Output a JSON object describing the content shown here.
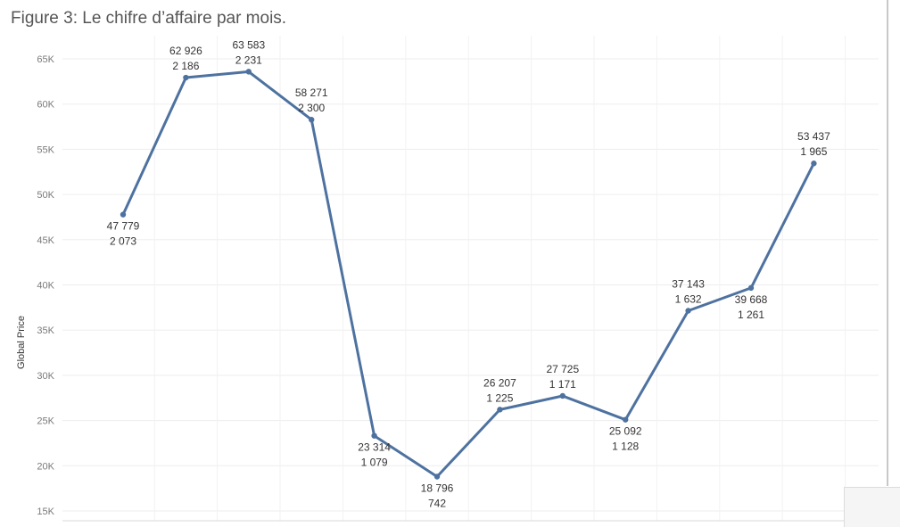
{
  "page": {
    "title": "Figure 3: Le chifre d’affaire par mois."
  },
  "chart_data": {
    "type": "line",
    "title": "Figure 3: Le chifre d’affaire par mois.",
    "ylabel": "Global Price",
    "xlabel": "",
    "ylim": [
      15000,
      66000
    ],
    "yticks": [
      15000,
      20000,
      25000,
      30000,
      35000,
      40000,
      45000,
      50000,
      55000,
      60000,
      65000
    ],
    "ytick_labels": [
      "15K",
      "20K",
      "25K",
      "30K",
      "35K",
      "40K",
      "45K",
      "50K",
      "55K",
      "60K",
      "65K"
    ],
    "grid": true,
    "line_color": "#4e72a0",
    "x": [
      1,
      2,
      3,
      4,
      5,
      6,
      7,
      8,
      9,
      10,
      11,
      12
    ],
    "values": [
      47779,
      62926,
      63583,
      58271,
      23314,
      18796,
      26207,
      27725,
      25092,
      37143,
      39668,
      53437
    ],
    "labels_primary": [
      "47 779",
      "62 926",
      "63 583",
      "58 271",
      "23 314",
      "18 796",
      "26 207",
      "27 725",
      "25 092",
      "37 143",
      "39 668",
      "53 437"
    ],
    "labels_secondary": [
      "2 073",
      "2 186",
      "2 231",
      "2 300",
      "1 079",
      "742",
      "1 225",
      "1 171",
      "1 128",
      "1 632",
      "1 261",
      "1 965"
    ],
    "label_position": [
      "below",
      "above",
      "above",
      "above",
      "below",
      "below",
      "above",
      "above",
      "below",
      "above",
      "below",
      "above"
    ]
  }
}
